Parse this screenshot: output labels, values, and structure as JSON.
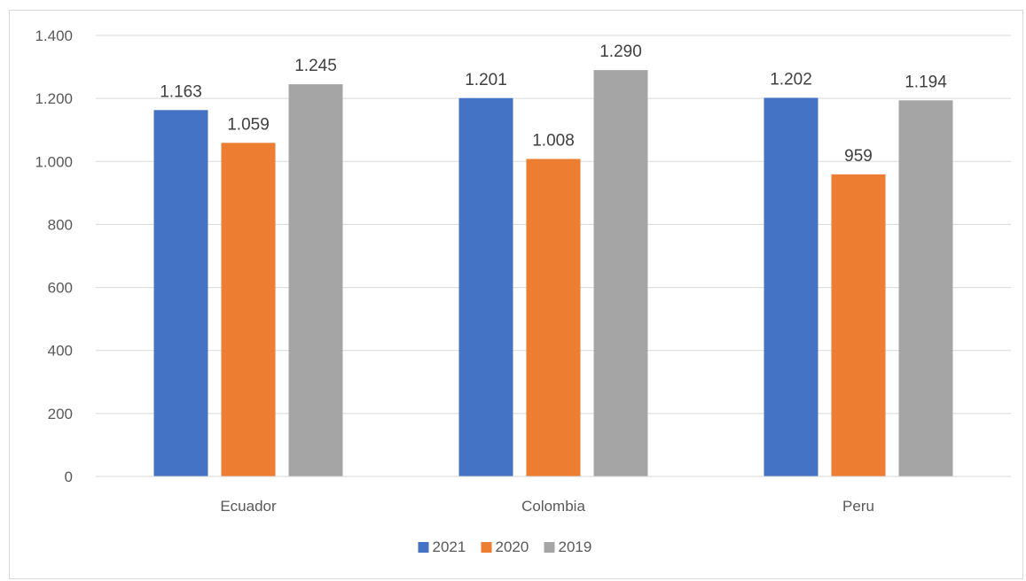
{
  "chart_data": {
    "type": "bar",
    "categories": [
      "Ecuador",
      "Colombia",
      "Peru"
    ],
    "series": [
      {
        "name": "2021",
        "color": "#4472c4",
        "values": [
          1163,
          1201,
          1202
        ],
        "labels": [
          "1.163",
          "1.201",
          "1.202"
        ]
      },
      {
        "name": "2020",
        "color": "#ed7d31",
        "values": [
          1059,
          1008,
          959
        ],
        "labels": [
          "1.059",
          "1.008",
          "959"
        ]
      },
      {
        "name": "2019",
        "color": "#a5a5a5",
        "values": [
          1245,
          1290,
          1194
        ],
        "labels": [
          "1.245",
          "1.290",
          "1.194"
        ]
      }
    ],
    "ylim": [
      0,
      1400
    ],
    "yticks": [
      0,
      200,
      400,
      600,
      800,
      1000,
      1200,
      1400
    ],
    "ytick_labels": [
      "0",
      "200",
      "400",
      "600",
      "800",
      "1.000",
      "1.200",
      "1.400"
    ],
    "grid": true,
    "legend_position": "bottom"
  }
}
